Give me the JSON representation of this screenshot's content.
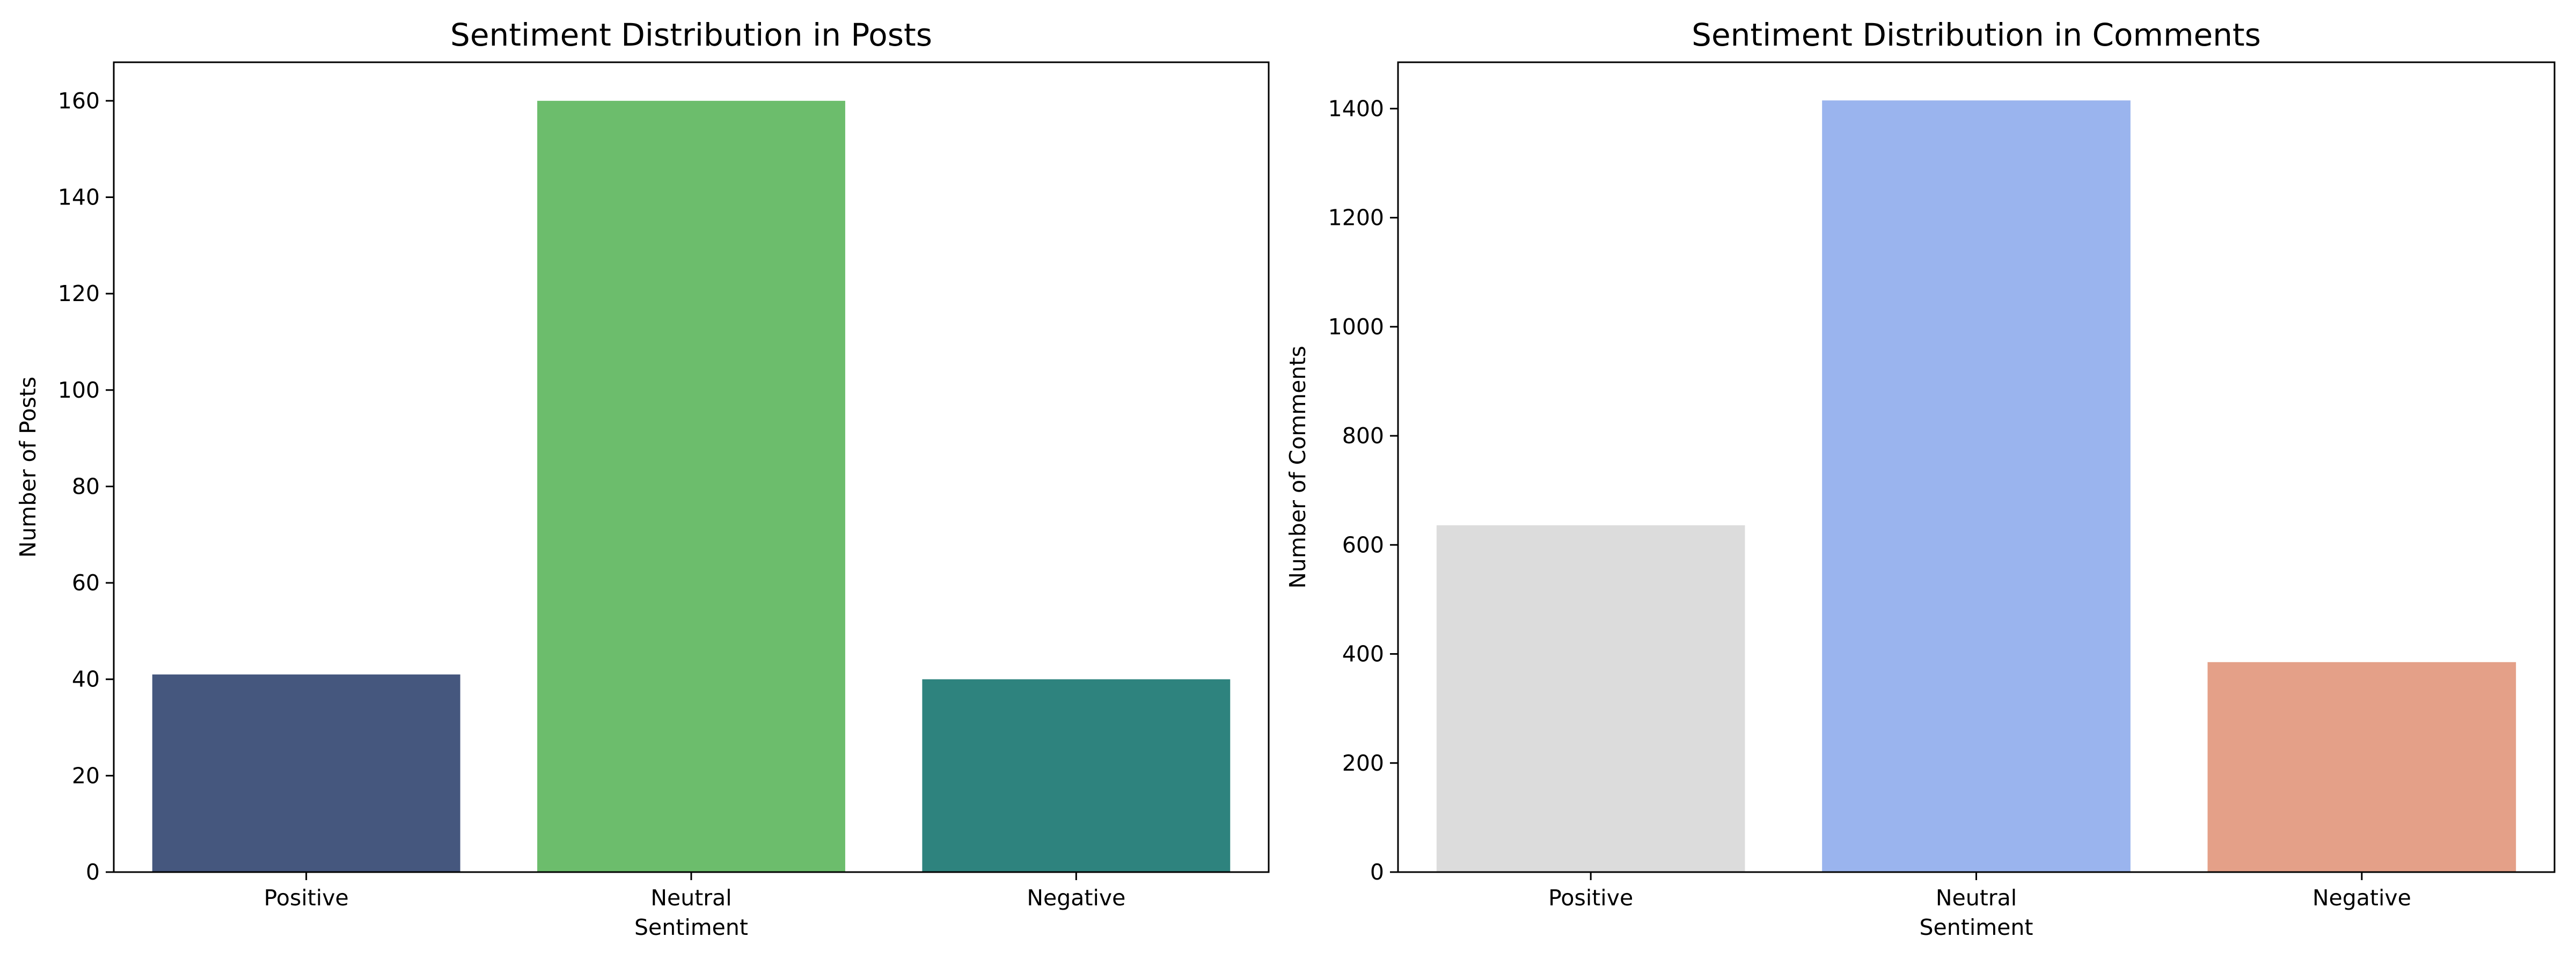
{
  "chart_data": [
    {
      "type": "bar",
      "title": "Sentiment Distribution in Posts",
      "xlabel": "Sentiment",
      "ylabel": "Number of Posts",
      "categories": [
        "Positive",
        "Neutral",
        "Negative"
      ],
      "values": [
        41,
        160,
        40
      ],
      "colors": [
        "#45577e",
        "#6cbd6c",
        "#2e837e"
      ],
      "ylim": [
        0,
        168
      ],
      "yticks": [
        0,
        20,
        40,
        60,
        80,
        100,
        120,
        140,
        160
      ],
      "grid": false,
      "legend": "none"
    },
    {
      "type": "bar",
      "title": "Sentiment Distribution in Comments",
      "xlabel": "Sentiment",
      "ylabel": "Number of Comments",
      "categories": [
        "Positive",
        "Neutral",
        "Negative"
      ],
      "values": [
        636,
        1415,
        385
      ],
      "colors": [
        "#dcdcdc",
        "#9ab4ee",
        "#e4a088"
      ],
      "ylim": [
        0,
        1485
      ],
      "yticks": [
        0,
        200,
        400,
        600,
        800,
        1000,
        1200,
        1400
      ],
      "grid": false,
      "legend": "none"
    }
  ]
}
